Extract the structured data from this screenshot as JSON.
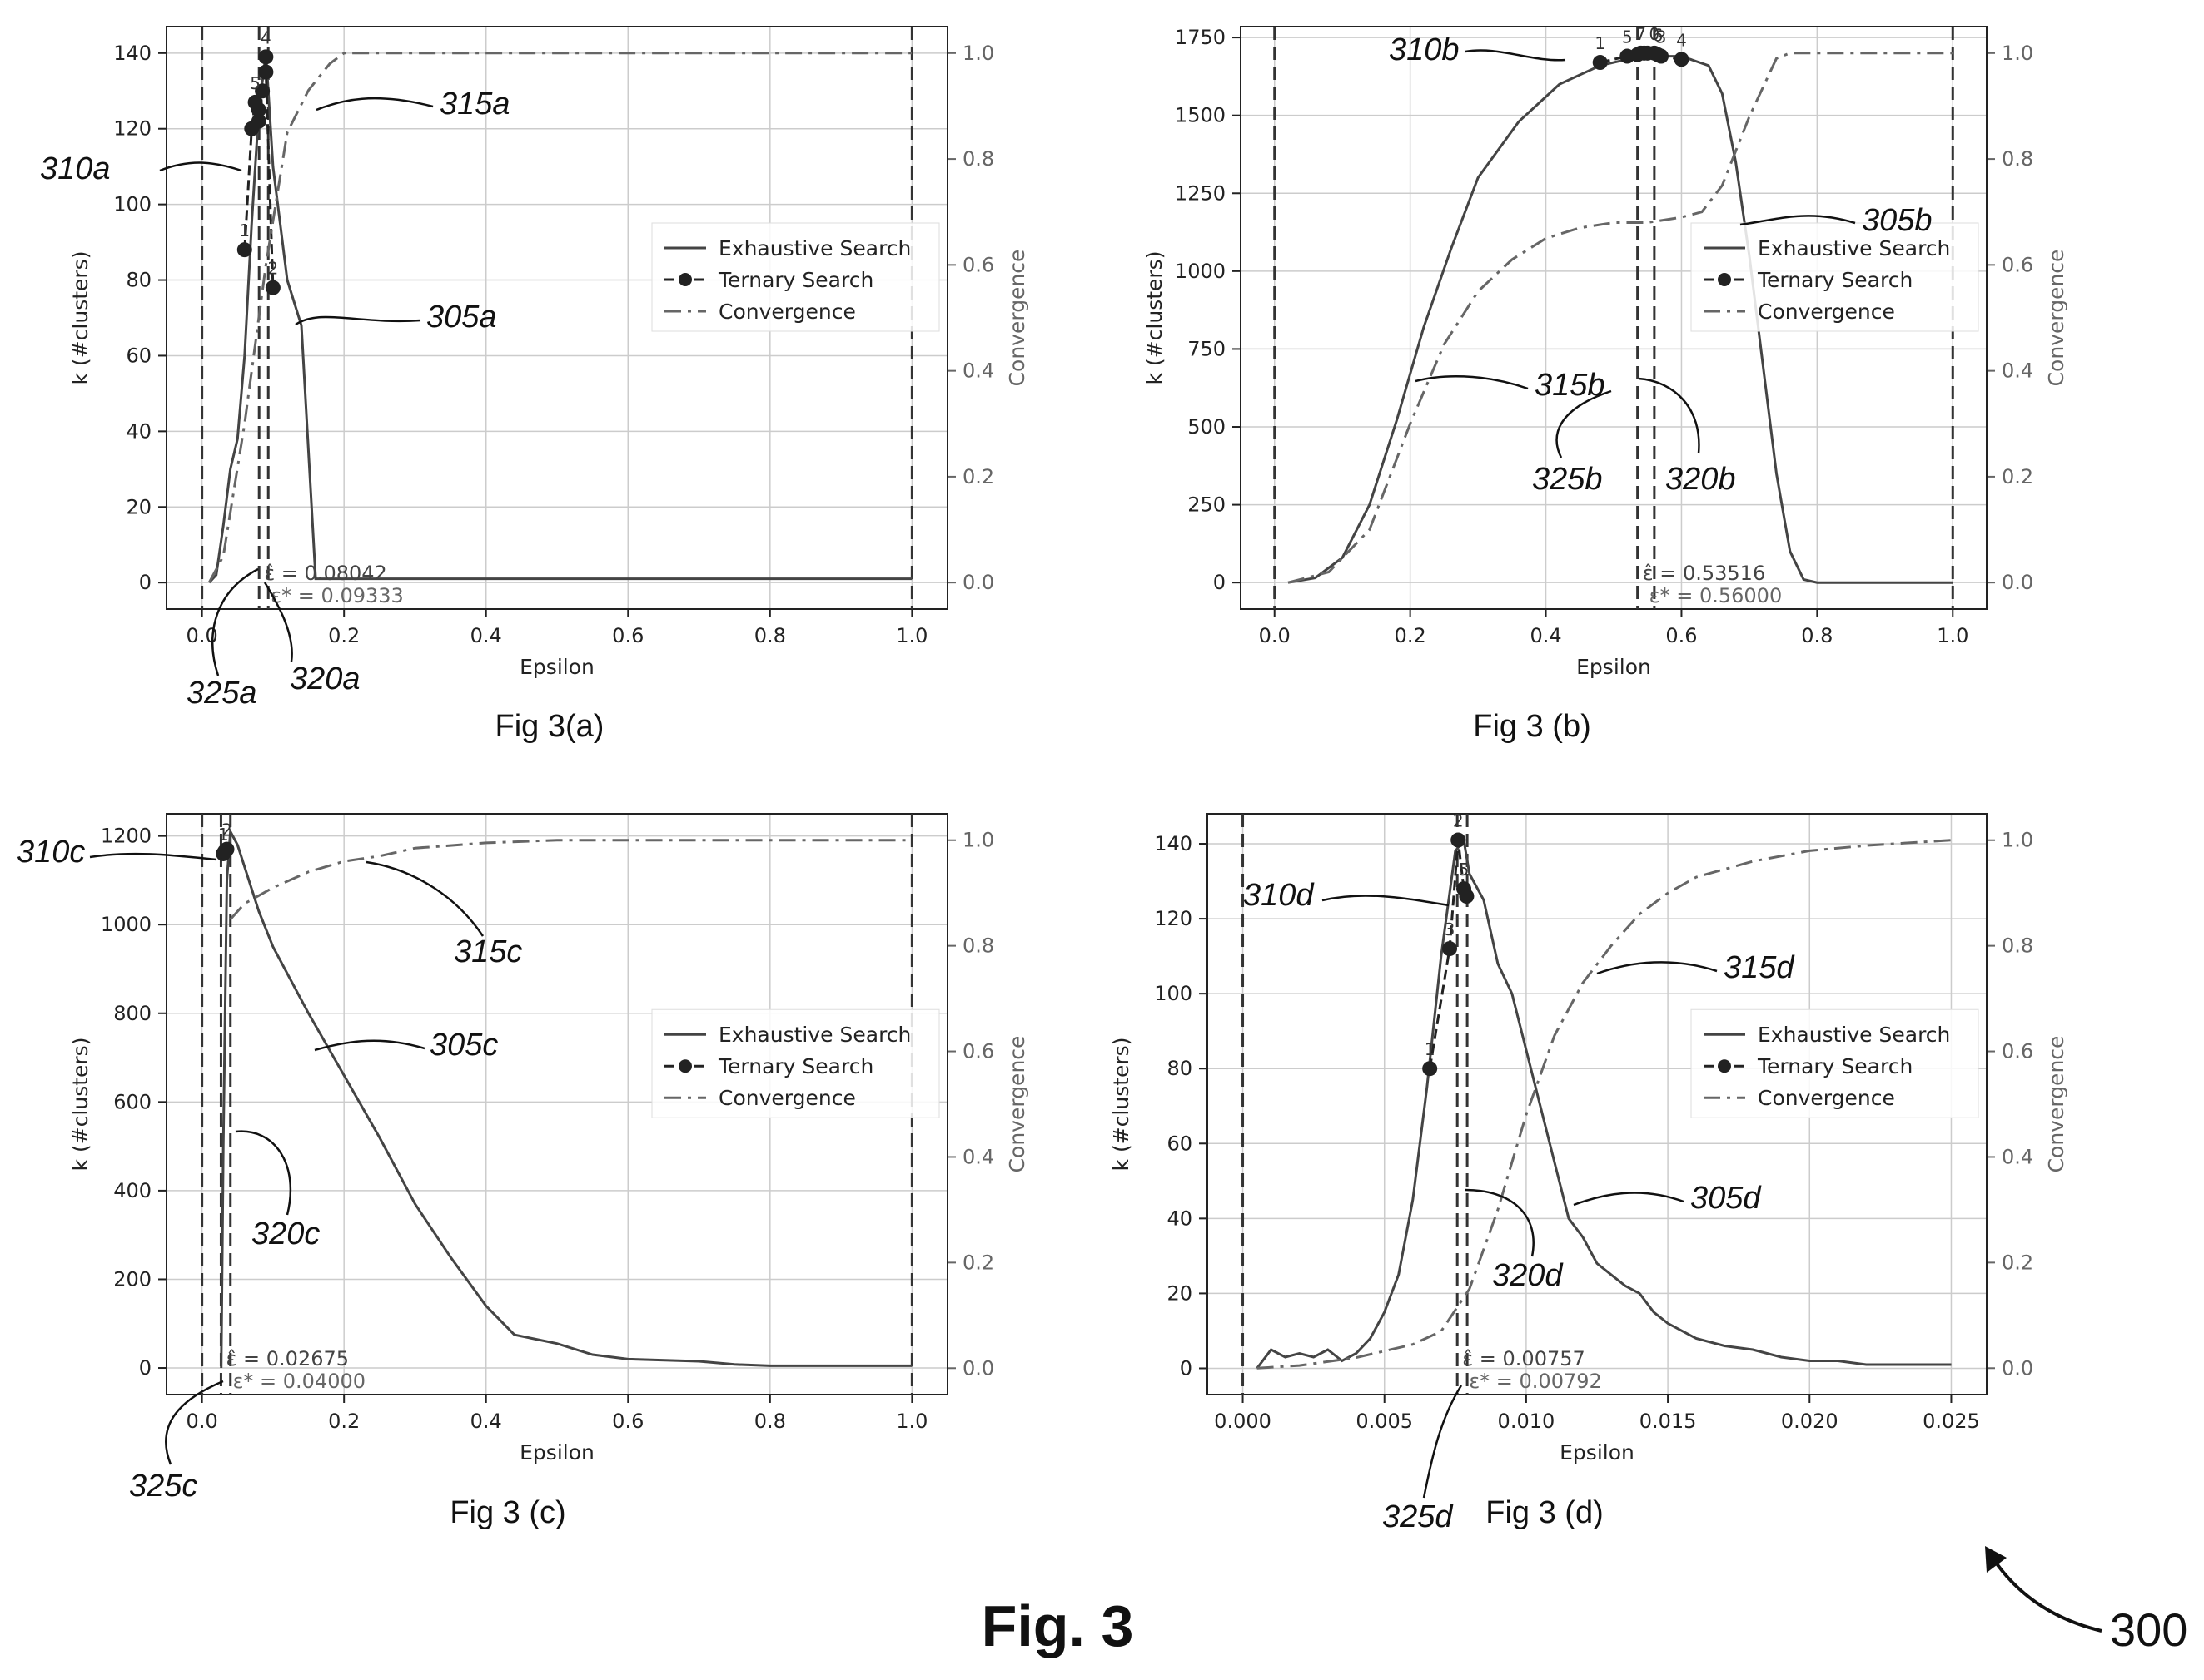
{
  "figure": {
    "title": "Fig. 3",
    "reference": "300",
    "colors": {
      "ink": "#222222",
      "grid": "#cccccc",
      "secondary": "#666666"
    }
  },
  "chart_data": [
    {
      "id": "a",
      "type": "line",
      "caption": "Fig 3(a)",
      "xlabel": "Epsilon",
      "ylabel": "k (#clusters)",
      "ylabel_right": "Convergence",
      "xlim": [
        -0.05,
        1.05
      ],
      "ylim": [
        -7,
        147
      ],
      "y2lim": [
        -0.05,
        1.05
      ],
      "xticks": [
        "0.0",
        "0.2",
        "0.4",
        "0.6",
        "0.8",
        "1.0"
      ],
      "yticks": [
        "0",
        "20",
        "40",
        "60",
        "80",
        "100",
        "120",
        "140"
      ],
      "y2ticks": [
        "0.0",
        "0.2",
        "0.4",
        "0.6",
        "0.8",
        "1.0"
      ],
      "grid": true,
      "legend_position": "center-right",
      "legend": [
        "Exhaustive Search",
        "Ternary Search",
        "Convergence"
      ],
      "series": [
        {
          "name": "Exhaustive Search",
          "style": "solid",
          "x": [
            0.01,
            0.02,
            0.03,
            0.04,
            0.05,
            0.06,
            0.07,
            0.08,
            0.09,
            0.1,
            0.12,
            0.14,
            0.16,
            0.2,
            0.4,
            0.6,
            0.8,
            1.0
          ],
          "y": [
            0,
            2,
            15,
            30,
            38,
            60,
            95,
            125,
            140,
            110,
            80,
            68,
            1,
            1,
            1,
            1,
            1,
            1
          ]
        },
        {
          "name": "Ternary Search",
          "style": "dashed-dots",
          "x": [
            0.06,
            0.07,
            0.08,
            0.09,
            0.1,
            0.08,
            0.085,
            0.075,
            0.09
          ],
          "y": [
            88,
            120,
            125,
            139,
            78,
            122,
            130,
            127,
            135
          ],
          "labels": [
            "1",
            "",
            "",
            "4",
            "2",
            "",
            "",
            "5",
            ""
          ]
        },
        {
          "name": "Convergence",
          "style": "dashdot",
          "axis": "right",
          "x": [
            0.01,
            0.03,
            0.06,
            0.09,
            0.12,
            0.15,
            0.18,
            0.2,
            1.0
          ],
          "y": [
            0,
            0.05,
            0.3,
            0.6,
            0.85,
            0.93,
            0.98,
            1.0,
            1.0
          ]
        }
      ],
      "vlines": [
        0.0,
        0.08042,
        0.09333,
        1.0
      ],
      "annotations": {
        "eps_hat": "ε̂ = 0.08042",
        "eps_star": "ε* = 0.09333"
      },
      "callouts": {
        "ternary": "310a",
        "convergence": "315a",
        "exhaustive": "305a",
        "eps_star": "320a",
        "eps_hat": "325a"
      }
    },
    {
      "id": "b",
      "type": "line",
      "caption": "Fig 3 (b)",
      "xlabel": "Epsilon",
      "ylabel": "k (#clusters)",
      "ylabel_right": "Convergence",
      "xlim": [
        -0.05,
        1.05
      ],
      "ylim": [
        -85,
        1785
      ],
      "y2lim": [
        -0.05,
        1.05
      ],
      "xticks": [
        "0.0",
        "0.2",
        "0.4",
        "0.6",
        "0.8",
        "1.0"
      ],
      "yticks": [
        "0",
        "250",
        "500",
        "750",
        "1000",
        "1250",
        "1500",
        "1750"
      ],
      "y2ticks": [
        "0.0",
        "0.2",
        "0.4",
        "0.6",
        "0.8",
        "1.0"
      ],
      "grid": true,
      "legend_position": "center-right",
      "legend": [
        "Exhaustive Search",
        "Ternary Search",
        "Convergence"
      ],
      "series": [
        {
          "name": "Exhaustive Search",
          "style": "solid",
          "x": [
            0.02,
            0.06,
            0.1,
            0.14,
            0.18,
            0.22,
            0.26,
            0.3,
            0.36,
            0.42,
            0.48,
            0.54,
            0.6,
            0.64,
            0.66,
            0.68,
            0.7,
            0.72,
            0.74,
            0.76,
            0.78,
            0.8,
            1.0
          ],
          "y": [
            0,
            15,
            80,
            250,
            520,
            820,
            1070,
            1300,
            1480,
            1600,
            1660,
            1690,
            1690,
            1660,
            1570,
            1350,
            1050,
            700,
            350,
            100,
            10,
            0,
            0
          ]
        },
        {
          "name": "Ternary Search",
          "style": "dashed-dots",
          "x": [
            0.48,
            0.52,
            0.54,
            0.55,
            0.56,
            0.57,
            0.6,
            0.535,
            0.545,
            0.565
          ],
          "y": [
            1670,
            1690,
            1700,
            1700,
            1700,
            1690,
            1680,
            1695,
            1700,
            1695
          ],
          "labels": [
            "1",
            "5",
            "7",
            "",
            "0",
            "3",
            "4",
            "",
            "",
            "6"
          ]
        },
        {
          "name": "Convergence",
          "style": "dashdot",
          "axis": "right",
          "x": [
            0.02,
            0.08,
            0.14,
            0.2,
            0.25,
            0.3,
            0.35,
            0.4,
            0.45,
            0.5,
            0.55,
            0.6,
            0.63,
            0.66,
            0.7,
            0.74,
            0.76,
            0.8,
            1.0
          ],
          "y": [
            0,
            0.02,
            0.1,
            0.3,
            0.45,
            0.55,
            0.61,
            0.65,
            0.67,
            0.68,
            0.68,
            0.69,
            0.7,
            0.75,
            0.88,
            0.99,
            1.0,
            1.0,
            1.0
          ]
        }
      ],
      "vlines": [
        0.0,
        0.53516,
        0.56,
        1.0
      ],
      "annotations": {
        "eps_hat": "ε̂ = 0.53516",
        "eps_star": "ε* = 0.56000"
      },
      "callouts": {
        "ternary": "310b",
        "convergence": "315b",
        "exhaustive": "305b",
        "eps_star": "320b",
        "eps_hat": "325b"
      }
    },
    {
      "id": "c",
      "type": "line",
      "caption": "Fig 3 (c)",
      "xlabel": "Epsilon",
      "ylabel": "k (#clusters)",
      "ylabel_right": "Convergence",
      "xlim": [
        -0.05,
        1.05
      ],
      "ylim": [
        -60,
        1250
      ],
      "y2lim": [
        -0.05,
        1.05
      ],
      "xticks": [
        "0.0",
        "0.2",
        "0.4",
        "0.6",
        "0.8",
        "1.0"
      ],
      "yticks": [
        "0",
        "200",
        "400",
        "600",
        "800",
        "1000",
        "1200"
      ],
      "y2ticks": [
        "0.0",
        "0.2",
        "0.4",
        "0.6",
        "0.8",
        "1.0"
      ],
      "grid": true,
      "legend_position": "center-right",
      "legend": [
        "Exhaustive Search",
        "Ternary Search",
        "Convergence"
      ],
      "series": [
        {
          "name": "Exhaustive Search",
          "style": "solid",
          "x": [
            0.027,
            0.03,
            0.035,
            0.04,
            0.05,
            0.08,
            0.1,
            0.15,
            0.2,
            0.25,
            0.3,
            0.35,
            0.4,
            0.44,
            0.5,
            0.55,
            0.6,
            0.7,
            0.75,
            0.8,
            1.0
          ],
          "y": [
            0,
            500,
            1100,
            1210,
            1180,
            1030,
            950,
            800,
            660,
            520,
            370,
            250,
            140,
            75,
            55,
            30,
            20,
            15,
            8,
            5,
            5
          ]
        },
        {
          "name": "Ternary Search",
          "style": "dashed-dots",
          "x": [
            0.03,
            0.035,
            0.032
          ],
          "y": [
            1160,
            1170,
            1165
          ],
          "labels": [
            "1",
            "2",
            ""
          ]
        },
        {
          "name": "Convergence",
          "style": "dashdot",
          "axis": "right",
          "x": [
            0.04,
            0.06,
            0.1,
            0.15,
            0.2,
            0.25,
            0.3,
            0.35,
            0.4,
            0.5,
            0.6,
            1.0
          ],
          "y": [
            0.85,
            0.88,
            0.91,
            0.94,
            0.96,
            0.97,
            0.985,
            0.99,
            0.995,
            1.0,
            1.0,
            1.0
          ]
        }
      ],
      "vlines": [
        0.0,
        0.02675,
        0.04,
        1.0
      ],
      "annotations": {
        "eps_hat": "ε̂ = 0.02675",
        "eps_star": "ε* = 0.04000"
      },
      "callouts": {
        "ternary": "310c",
        "convergence": "315c",
        "exhaustive": "305c",
        "eps_star": "320c",
        "eps_hat": "325c"
      }
    },
    {
      "id": "d",
      "type": "line",
      "caption": "Fig 3 (d)",
      "xlabel": "Epsilon",
      "ylabel": "k (#clusters)",
      "ylabel_right": "Convergence",
      "xlim": [
        -0.00125,
        0.02625
      ],
      "ylim": [
        -7,
        148
      ],
      "y2lim": [
        -0.05,
        1.05
      ],
      "xticks": [
        "0.000",
        "0.005",
        "0.010",
        "0.015",
        "0.020",
        "0.025"
      ],
      "yticks": [
        "0",
        "20",
        "40",
        "60",
        "80",
        "100",
        "120",
        "140"
      ],
      "y2ticks": [
        "0.0",
        "0.2",
        "0.4",
        "0.6",
        "0.8",
        "1.0"
      ],
      "grid": true,
      "legend_position": "center-right",
      "legend": [
        "Exhaustive Search",
        "Ternary Search",
        "Convergence"
      ],
      "series": [
        {
          "name": "Exhaustive Search",
          "style": "solid",
          "x": [
            0.0005,
            0.001,
            0.0015,
            0.002,
            0.0025,
            0.003,
            0.0035,
            0.004,
            0.0045,
            0.005,
            0.0055,
            0.006,
            0.0065,
            0.007,
            0.0075,
            0.0078,
            0.008,
            0.0085,
            0.009,
            0.0095,
            0.01,
            0.0105,
            0.011,
            0.0115,
            0.012,
            0.0125,
            0.013,
            0.0135,
            0.014,
            0.0145,
            0.015,
            0.016,
            0.017,
            0.018,
            0.019,
            0.02,
            0.021,
            0.022,
            0.025
          ],
          "y": [
            0,
            5,
            3,
            4,
            3,
            5,
            2,
            4,
            8,
            15,
            25,
            45,
            75,
            110,
            138,
            141,
            132,
            125,
            108,
            100,
            85,
            70,
            55,
            40,
            35,
            28,
            25,
            22,
            20,
            15,
            12,
            8,
            6,
            5,
            3,
            2,
            2,
            1,
            1
          ]
        },
        {
          "name": "Ternary Search",
          "style": "dashed-dots",
          "x": [
            0.0066,
            0.0073,
            0.0076,
            0.0079,
            0.0078
          ],
          "y": [
            80,
            112,
            141,
            126,
            128
          ],
          "labels": [
            "1",
            "3",
            "2",
            "",
            "5"
          ]
        },
        {
          "name": "Convergence",
          "style": "dashdot",
          "axis": "right",
          "x": [
            0.0005,
            0.002,
            0.004,
            0.006,
            0.007,
            0.008,
            0.009,
            0.01,
            0.011,
            0.012,
            0.013,
            0.014,
            0.015,
            0.016,
            0.018,
            0.02,
            0.022,
            0.025
          ],
          "y": [
            0,
            0.005,
            0.02,
            0.045,
            0.07,
            0.15,
            0.3,
            0.48,
            0.63,
            0.73,
            0.8,
            0.86,
            0.9,
            0.93,
            0.96,
            0.98,
            0.99,
            1.0
          ]
        }
      ],
      "vlines": [
        0.0,
        0.00757,
        0.00792
      ],
      "annotations": {
        "eps_hat": "ε̂ = 0.00757",
        "eps_star": "ε* = 0.00792"
      },
      "callouts": {
        "ternary": "310d",
        "convergence": "315d",
        "exhaustive": "305d",
        "eps_star": "320d",
        "eps_hat": "325d"
      }
    }
  ]
}
